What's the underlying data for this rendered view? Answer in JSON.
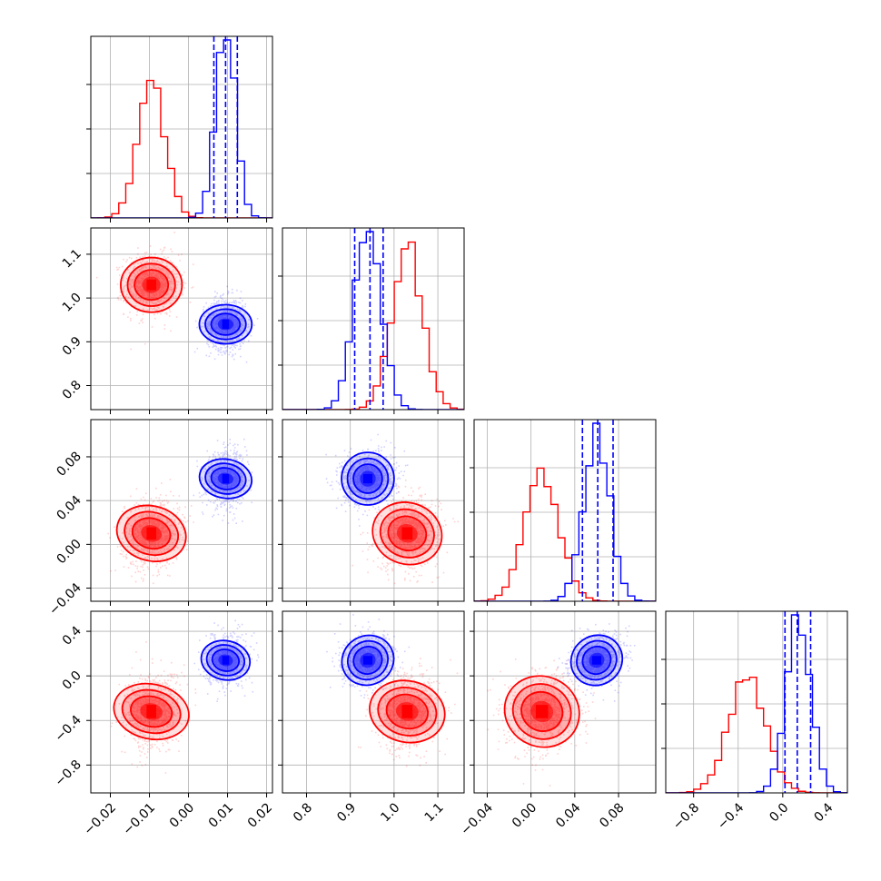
{
  "colors": {
    "series_a": "#ff0000",
    "series_b": "#0000ff",
    "grid": "#b0b0b0",
    "frame": "#000000"
  },
  "chart_data": {
    "type": "corner",
    "grid": true,
    "parameters": [
      {
        "range": [
          -0.025,
          0.0215
        ],
        "ticks": [
          -0.02,
          -0.01,
          0.0,
          0.01,
          0.02
        ],
        "tick_labels": [
          "−0.02",
          "−0.01",
          "0.00",
          "0.01",
          "0.02"
        ]
      },
      {
        "range": [
          0.745,
          1.16
        ],
        "ticks": [
          0.8,
          0.9,
          1.0,
          1.1
        ],
        "tick_labels": [
          "0.8",
          "0.9",
          "1.0",
          "1.1"
        ]
      },
      {
        "range": [
          -0.052,
          0.114
        ],
        "ticks": [
          -0.04,
          0.0,
          0.04,
          0.08
        ],
        "tick_labels": [
          "−0.04",
          "0.00",
          "0.04",
          "0.08"
        ]
      },
      {
        "range": [
          -1.05,
          0.58
        ],
        "ticks": [
          -0.8,
          -0.4,
          0.0,
          0.4
        ],
        "tick_labels": [
          "−0.8",
          "−0.4",
          "0.0",
          "0.4"
        ]
      }
    ],
    "series": [
      {
        "color": "#ff0000",
        "mean": [
          -0.0095,
          1.03,
          0.01,
          -0.32
        ],
        "sd": [
          0.0035,
          0.035,
          0.016,
          0.17
        ],
        "corr": [
          [
            0,
            0,
            0.15,
            0.15
          ],
          [
            0,
            0,
            0.1,
            0.1
          ],
          [
            0.15,
            0.1,
            0,
            0.1
          ],
          [
            0.15,
            0.1,
            0.1,
            0
          ]
        ],
        "quantile_lines": []
      },
      {
        "color": "#0000ff",
        "mean": [
          0.0095,
          0.94,
          0.06,
          0.14
        ],
        "sd": [
          0.0025,
          0.03,
          0.012,
          0.11
        ],
        "corr": [
          [
            0,
            0,
            0.1,
            0.1
          ],
          [
            0,
            0,
            0.1,
            0.1
          ],
          [
            0.1,
            0.1,
            0,
            0.2
          ],
          [
            0.1,
            0.1,
            0.2,
            0
          ]
        ],
        "quantile_lines": [
          [
            0.0065,
            0.0095,
            0.0125
          ],
          [
            0.91,
            0.945,
            0.975
          ],
          [
            0.047,
            0.061,
            0.075
          ],
          [
            0.02,
            0.13,
            0.25
          ]
        ]
      }
    ]
  }
}
